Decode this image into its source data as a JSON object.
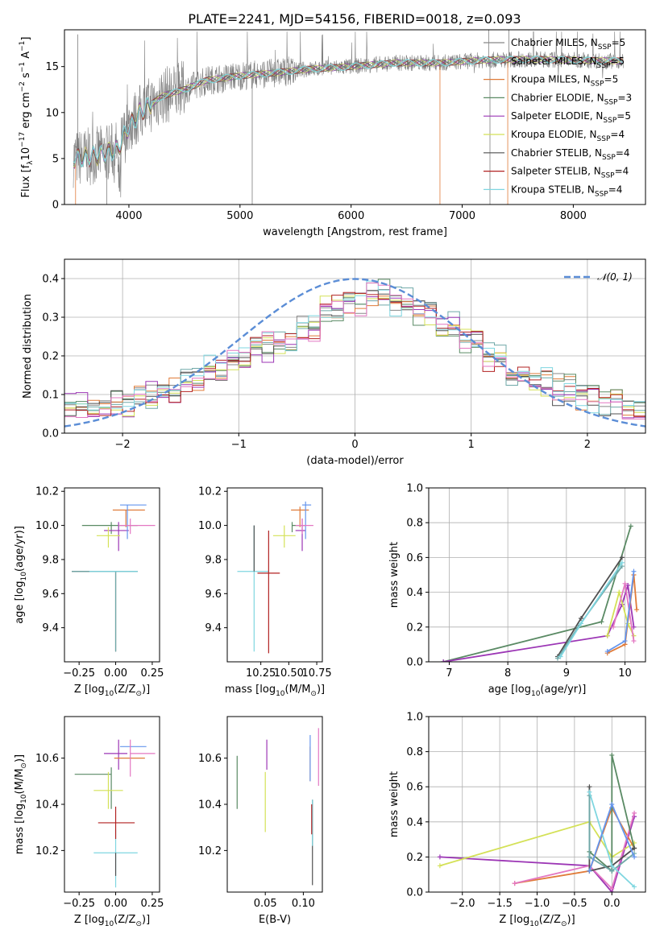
{
  "figure": {
    "title": "PLATE=2241, MJD=54156, FIBERID=0018, z=0.093"
  },
  "colors": {
    "data": "#7f7f7f",
    "normal": "#5b8dd6",
    "models": [
      "#888888",
      "#6fa8a8",
      "#e07b39",
      "#5a8a64",
      "#9c36b5",
      "#d4e157",
      "#505050",
      "#b22222",
      "#7fd6e0",
      "#e377c2",
      "#6495ed"
    ]
  },
  "legend_spectrum": [
    {
      "name": "Chabrier MILES",
      "n": "5",
      "color": "#888888"
    },
    {
      "name": "Salpeter MILES",
      "n": "5",
      "color": "#6fa8a8"
    },
    {
      "name": "Kroupa MILES",
      "n": "5",
      "color": "#e07b39"
    },
    {
      "name": "Chabrier ELODIE",
      "n": "3",
      "color": "#5a8a64"
    },
    {
      "name": "Salpeter ELODIE",
      "n": "5",
      "color": "#9c36b5"
    },
    {
      "name": "Kroupa ELODIE",
      "n": "4",
      "color": "#d4e157"
    },
    {
      "name": "Chabrier STELIB",
      "n": "4",
      "color": "#505050"
    },
    {
      "name": "Salpeter STELIB",
      "n": "4",
      "color": "#b22222"
    },
    {
      "name": "Kroupa STELIB",
      "n": "4",
      "color": "#7fd6e0"
    }
  ],
  "chart_data": [
    {
      "type": "line",
      "title": "PLATE=2241, MJD=54156, FIBERID=0018, z=0.093",
      "xlabel": "wavelength [Angstrom, rest frame]",
      "ylabel": "Flux [f_λ10^-17 erg cm^-2 s^-1 A^-1]",
      "xlim": [
        3420,
        8650
      ],
      "ylim": [
        0,
        19
      ],
      "xticks": [
        4000,
        5000,
        6000,
        7000,
        8000
      ],
      "yticks": [
        0,
        5,
        10,
        15
      ],
      "continuum": {
        "x": [
          3500,
          3700,
          3900,
          4000,
          4100,
          4300,
          4500,
          4700,
          5000,
          5300,
          5600,
          6000,
          6400,
          6800,
          7200,
          7600,
          8000,
          8450
        ],
        "y": [
          5.0,
          5.3,
          6.0,
          8.5,
          10.0,
          11.8,
          12.5,
          13.5,
          14.0,
          14.3,
          14.7,
          15.0,
          15.4,
          15.4,
          15.7,
          15.8,
          15.7,
          15.6
        ]
      },
      "series_names": [
        "Chabrier MILES",
        "Salpeter MILES",
        "Kroupa MILES",
        "Chabrier ELODIE",
        "Salpeter ELODIE",
        "Kroupa ELODIE",
        "Chabrier STELIB",
        "Salpeter STELIB",
        "Kroupa STELIB"
      ],
      "grid": false,
      "legend": "upper right"
    },
    {
      "type": "line",
      "xlabel": "(data-model)/error",
      "ylabel": "Normed distribution",
      "xlim": [
        -2.5,
        2.5
      ],
      "ylim": [
        0,
        0.45
      ],
      "xticks": [
        -2,
        -1,
        0,
        1,
        2
      ],
      "yticks": [
        0.0,
        0.1,
        0.2,
        0.3,
        0.4
      ],
      "reference_label": "N(0,1)",
      "histogram_mean": {
        "x": [
          -2.5,
          -2.3,
          -2.1,
          -1.9,
          -1.7,
          -1.5,
          -1.3,
          -1.1,
          -0.9,
          -0.7,
          -0.5,
          -0.3,
          -0.1,
          0.1,
          0.3,
          0.5,
          0.7,
          0.9,
          1.1,
          1.3,
          1.5,
          1.7,
          1.9,
          2.1,
          2.3,
          2.5
        ],
        "y": [
          0.065,
          0.06,
          0.075,
          0.095,
          0.115,
          0.135,
          0.16,
          0.2,
          0.22,
          0.23,
          0.27,
          0.32,
          0.34,
          0.365,
          0.34,
          0.31,
          0.28,
          0.24,
          0.2,
          0.16,
          0.135,
          0.115,
          0.095,
          0.08,
          0.065,
          0.045
        ]
      },
      "grid": true,
      "legend": "upper right"
    },
    {
      "type": "scatter",
      "xlabel": "Z [log10(Z/Z⊙)]",
      "ylabel": "age  [log10(age/yr)]",
      "xlim": [
        -0.35,
        0.3
      ],
      "ylim": [
        9.2,
        10.22
      ],
      "xticks": [
        -0.25,
        0.0,
        0.25
      ],
      "yticks": [
        9.4,
        9.6,
        9.8,
        10.0,
        10.2
      ],
      "points": [
        {
          "x": 0.0,
          "y": 9.73,
          "xerr": [
            0.3,
            0.15
          ],
          "yerr": [
            0.47,
            0.0
          ],
          "c": "#505050"
        },
        {
          "x": 0.0,
          "y": 9.73,
          "xerr": [
            0.3,
            0.15
          ],
          "yerr": [
            0.47,
            0.0
          ],
          "c": "#6fa8a8"
        },
        {
          "x": -0.03,
          "y": 9.73,
          "xerr": [
            0.15,
            0.18
          ],
          "yerr": [
            0.0,
            0.0
          ],
          "c": "#7fd6e0"
        },
        {
          "x": -0.03,
          "y": 10.0,
          "xerr": [
            0.2,
            0.18
          ],
          "yerr": [
            0.05,
            0.02
          ],
          "c": "#5a8a64"
        },
        {
          "x": 0.02,
          "y": 9.97,
          "xerr": [
            0.1,
            0.07
          ],
          "yerr": [
            0.12,
            0.05
          ],
          "c": "#9c36b5"
        },
        {
          "x": -0.05,
          "y": 9.94,
          "xerr": [
            0.08,
            0.08
          ],
          "yerr": [
            0.07,
            0.05
          ],
          "c": "#d4e157"
        },
        {
          "x": 0.07,
          "y": 10.09,
          "xerr": [
            0.09,
            0.13
          ],
          "yerr": [
            0.1,
            0.0
          ],
          "c": "#e07b39"
        },
        {
          "x": 0.08,
          "y": 10.12,
          "xerr": [
            0.05,
            0.13
          ],
          "yerr": [
            0.2,
            0.0
          ],
          "c": "#6495ed"
        },
        {
          "x": 0.1,
          "y": 10.0,
          "xerr": [
            0.08,
            0.17
          ],
          "yerr": [
            0.05,
            0.04
          ],
          "c": "#e377c2"
        }
      ]
    },
    {
      "type": "scatter",
      "xlabel": "mass [log10(M/M⊙)]",
      "ylabel": "",
      "xlim": [
        9.95,
        10.8
      ],
      "ylim": [
        9.2,
        10.22
      ],
      "xticks": [
        10.25,
        10.5,
        10.75
      ],
      "yticks": [
        9.4,
        9.6,
        9.8,
        10.0,
        10.2
      ],
      "points": [
        {
          "x": 10.19,
          "y": 9.73,
          "xerr": [
            0.15,
            0.13
          ],
          "yerr": [
            0.47,
            0.27
          ],
          "c": "#7fd6e0"
        },
        {
          "x": 10.32,
          "y": 9.72,
          "xerr": [
            0.1,
            0.1
          ],
          "yerr": [
            0.47,
            0.25
          ],
          "c": "#b22222"
        },
        {
          "x": 10.19,
          "y": 9.73,
          "xerr": [
            0.0,
            0.0
          ],
          "yerr": [
            0.0,
            0.27
          ],
          "c": "#505050"
        },
        {
          "x": 10.53,
          "y": 10.0,
          "xerr": [
            0.0,
            0.12
          ],
          "yerr": [
            0.04,
            0.02
          ],
          "c": "#5a8a64"
        },
        {
          "x": 10.46,
          "y": 9.94,
          "xerr": [
            0.1,
            0.1
          ],
          "yerr": [
            0.07,
            0.06
          ],
          "c": "#d4e157"
        },
        {
          "x": 10.62,
          "y": 9.97,
          "xerr": [
            0.06,
            0.03
          ],
          "yerr": [
            0.12,
            0.07
          ],
          "c": "#9c36b5"
        },
        {
          "x": 10.6,
          "y": 10.09,
          "xerr": [
            0.08,
            0.08
          ],
          "yerr": [
            0.1,
            0.02
          ],
          "c": "#e07b39"
        },
        {
          "x": 10.65,
          "y": 10.12,
          "xerr": [
            0.03,
            0.05
          ],
          "yerr": [
            0.2,
            0.02
          ],
          "c": "#6495ed"
        },
        {
          "x": 10.62,
          "y": 10.0,
          "xerr": [
            0.06,
            0.1
          ],
          "yerr": [
            0.05,
            0.04
          ],
          "c": "#e377c2"
        }
      ]
    },
    {
      "type": "line",
      "xlabel": "age  [log10(age/yr)]",
      "ylabel": "mass weight",
      "xlim": [
        6.65,
        10.35
      ],
      "ylim": [
        0,
        1.0
      ],
      "xticks": [
        7,
        8,
        9,
        10
      ],
      "yticks": [
        0.0,
        0.2,
        0.4,
        0.6,
        0.8,
        1.0
      ],
      "grid": true,
      "series": [
        {
          "c": "#5a8a64",
          "x": [
            6.9,
            9.6,
            10.1
          ],
          "y": [
            0.0,
            0.23,
            0.78
          ]
        },
        {
          "c": "#9c36b5",
          "x": [
            6.9,
            9.7,
            9.95,
            10.05,
            10.15
          ],
          "y": [
            0.0,
            0.15,
            0.33,
            0.44,
            0.2
          ]
        },
        {
          "c": "#505050",
          "x": [
            8.85,
            9.25,
            9.95
          ],
          "y": [
            0.03,
            0.25,
            0.6
          ]
        },
        {
          "c": "#6fa8a8",
          "x": [
            8.85,
            9.2,
            9.95
          ],
          "y": [
            0.02,
            0.2,
            0.55
          ]
        },
        {
          "c": "#e07b39",
          "x": [
            9.7,
            10.0,
            10.15,
            10.2
          ],
          "y": [
            0.05,
            0.1,
            0.5,
            0.3
          ]
        },
        {
          "c": "#d4e157",
          "x": [
            9.7,
            9.9,
            10.05,
            10.15
          ],
          "y": [
            0.15,
            0.4,
            0.22,
            0.15
          ]
        },
        {
          "c": "#e377c2",
          "x": [
            9.8,
            10.0,
            10.15
          ],
          "y": [
            0.2,
            0.45,
            0.12
          ]
        },
        {
          "c": "#6495ed",
          "x": [
            9.7,
            10.0,
            10.15
          ],
          "y": [
            0.06,
            0.12,
            0.52
          ]
        },
        {
          "c": "#7fd6e0",
          "x": [
            8.9,
            9.25,
            9.95
          ],
          "y": [
            0.03,
            0.22,
            0.57
          ]
        }
      ]
    },
    {
      "type": "scatter",
      "xlabel": "Z [log10(Z/Z⊙)]",
      "ylabel": "mass [log10(M/M⊙)]",
      "xlim": [
        -0.35,
        0.3
      ],
      "ylim": [
        10.02,
        10.78
      ],
      "xticks": [
        -0.25,
        0.0,
        0.25
      ],
      "yticks": [
        10.2,
        10.4,
        10.6
      ],
      "points": [
        {
          "x": 0.0,
          "y": 10.19,
          "xerr": [
            0.15,
            0.15
          ],
          "yerr": [
            0.15,
            0.1
          ],
          "c": "#7fd6e0"
        },
        {
          "x": 0.0,
          "y": 10.19,
          "xerr": [
            0.0,
            0.0
          ],
          "yerr": [
            0.1,
            0.0
          ],
          "c": "#505050"
        },
        {
          "x": -0.03,
          "y": 10.53,
          "xerr": [
            0.25,
            0.0
          ],
          "yerr": [
            0.15,
            0.03
          ],
          "c": "#5a8a64"
        },
        {
          "x": 0.0,
          "y": 10.32,
          "xerr": [
            0.12,
            0.13
          ],
          "yerr": [
            0.07,
            0.07
          ],
          "c": "#b22222"
        },
        {
          "x": -0.05,
          "y": 10.46,
          "xerr": [
            0.1,
            0.1
          ],
          "yerr": [
            0.08,
            0.08
          ],
          "c": "#d4e157"
        },
        {
          "x": 0.02,
          "y": 10.62,
          "xerr": [
            0.1,
            0.06
          ],
          "yerr": [
            0.07,
            0.06
          ],
          "c": "#9c36b5"
        },
        {
          "x": 0.07,
          "y": 10.6,
          "xerr": [
            0.08,
            0.13
          ],
          "yerr": [
            0.0,
            0.0
          ],
          "c": "#e07b39"
        },
        {
          "x": 0.08,
          "y": 10.65,
          "xerr": [
            0.05,
            0.13
          ],
          "yerr": [
            0.0,
            0.0
          ],
          "c": "#6495ed"
        },
        {
          "x": 0.1,
          "y": 10.62,
          "xerr": [
            0.0,
            0.17
          ],
          "yerr": [
            0.1,
            0.06
          ],
          "c": "#e377c2"
        }
      ]
    },
    {
      "type": "scatter",
      "xlabel": "E(B-V)",
      "ylabel": "",
      "xlim": [
        0.0,
        0.125
      ],
      "ylim": [
        10.02,
        10.78
      ],
      "xticks": [
        0.05,
        0.1
      ],
      "yticks": [
        10.2,
        10.4,
        10.6
      ],
      "points": [
        {
          "x": 0.013,
          "y": 10.5,
          "yerr": [
            0.12,
            0.11
          ],
          "c": "#5a8a64"
        },
        {
          "x": 0.05,
          "y": 10.46,
          "yerr": [
            0.18,
            0.08
          ],
          "c": "#d4e157"
        },
        {
          "x": 0.052,
          "y": 10.6,
          "yerr": [
            0.05,
            0.08
          ],
          "c": "#9c36b5"
        },
        {
          "x": 0.109,
          "y": 10.6,
          "yerr": [
            0.1,
            0.05
          ],
          "c": "#e07b39"
        },
        {
          "x": 0.109,
          "y": 10.6,
          "yerr": [
            0.1,
            0.1
          ],
          "c": "#6495ed"
        },
        {
          "x": 0.112,
          "y": 10.32,
          "yerr": [
            0.27,
            0.1
          ],
          "c": "#505050"
        },
        {
          "x": 0.112,
          "y": 10.32,
          "yerr": [
            0.1,
            0.1
          ],
          "c": "#7fd6e0"
        },
        {
          "x": 0.111,
          "y": 10.32,
          "yerr": [
            0.05,
            0.08
          ],
          "c": "#b22222"
        },
        {
          "x": 0.12,
          "y": 10.6,
          "yerr": [
            0.12,
            0.13
          ],
          "c": "#e377c2"
        }
      ]
    },
    {
      "type": "line",
      "xlabel": "Z [log10(Z/Z⊙)]",
      "ylabel": "mass weight",
      "xlim": [
        -2.45,
        0.45
      ],
      "ylim": [
        0,
        1.0
      ],
      "xticks": [
        -2.0,
        -1.5,
        -1.0,
        -0.5,
        0.0
      ],
      "yticks": [
        0.0,
        0.2,
        0.4,
        0.6,
        0.8,
        1.0
      ],
      "grid": true,
      "series": [
        {
          "c": "#9c36b5",
          "x": [
            -2.3,
            -0.3,
            0.0,
            0.3
          ],
          "y": [
            0.2,
            0.15,
            0.0,
            0.43
          ]
        },
        {
          "c": "#d4e157",
          "x": [
            -2.3,
            -0.3,
            0.0,
            0.3
          ],
          "y": [
            0.15,
            0.4,
            0.2,
            0.28
          ]
        },
        {
          "c": "#e07b39",
          "x": [
            -1.3,
            -0.3,
            0.0,
            0.3
          ],
          "y": [
            0.05,
            0.12,
            0.48,
            0.25
          ]
        },
        {
          "c": "#e377c2",
          "x": [
            -1.3,
            -0.3,
            0.0,
            0.3
          ],
          "y": [
            0.05,
            0.15,
            0.02,
            0.45
          ]
        },
        {
          "c": "#5a8a64",
          "x": [
            -0.3,
            0.0,
            0.0,
            0.3
          ],
          "y": [
            0.23,
            0.12,
            0.78,
            0.25
          ]
        },
        {
          "c": "#505050",
          "x": [
            -0.3,
            -0.3,
            0.0,
            0.3
          ],
          "y": [
            0.6,
            0.12,
            0.15,
            0.25
          ]
        },
        {
          "c": "#6fa8a8",
          "x": [
            -0.3,
            -0.3,
            0.0,
            0.3
          ],
          "y": [
            0.55,
            0.2,
            0.12,
            0.22
          ]
        },
        {
          "c": "#7fd6e0",
          "x": [
            -0.3,
            0.0,
            0.3
          ],
          "y": [
            0.57,
            0.15,
            0.03
          ]
        },
        {
          "c": "#6495ed",
          "x": [
            -0.3,
            0.0,
            0.3
          ],
          "y": [
            0.12,
            0.5,
            0.2
          ]
        }
      ]
    }
  ]
}
